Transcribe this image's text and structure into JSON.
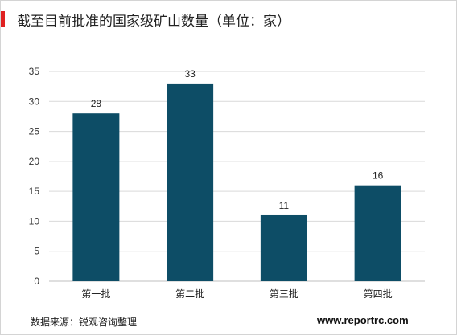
{
  "title": "截至目前批准的国家级矿山数量（单位：家）",
  "source": "数据来源：锐观咨询整理",
  "website": "www.reportrc.com",
  "colors": {
    "bar": "#0d4d66",
    "accent": "#e02121",
    "grid": "#d9d9d9",
    "axis": "#bfbfbf"
  },
  "chart_data": {
    "type": "bar",
    "categories": [
      "第一批",
      "第二批",
      "第三批",
      "第四批"
    ],
    "values": [
      28,
      33,
      11,
      16
    ],
    "yticks": [
      "0",
      "5",
      "10",
      "15",
      "20",
      "25",
      "30",
      "35"
    ],
    "ylim": [
      0,
      35
    ],
    "grid": true,
    "legend": "none",
    "data_labels": true
  }
}
